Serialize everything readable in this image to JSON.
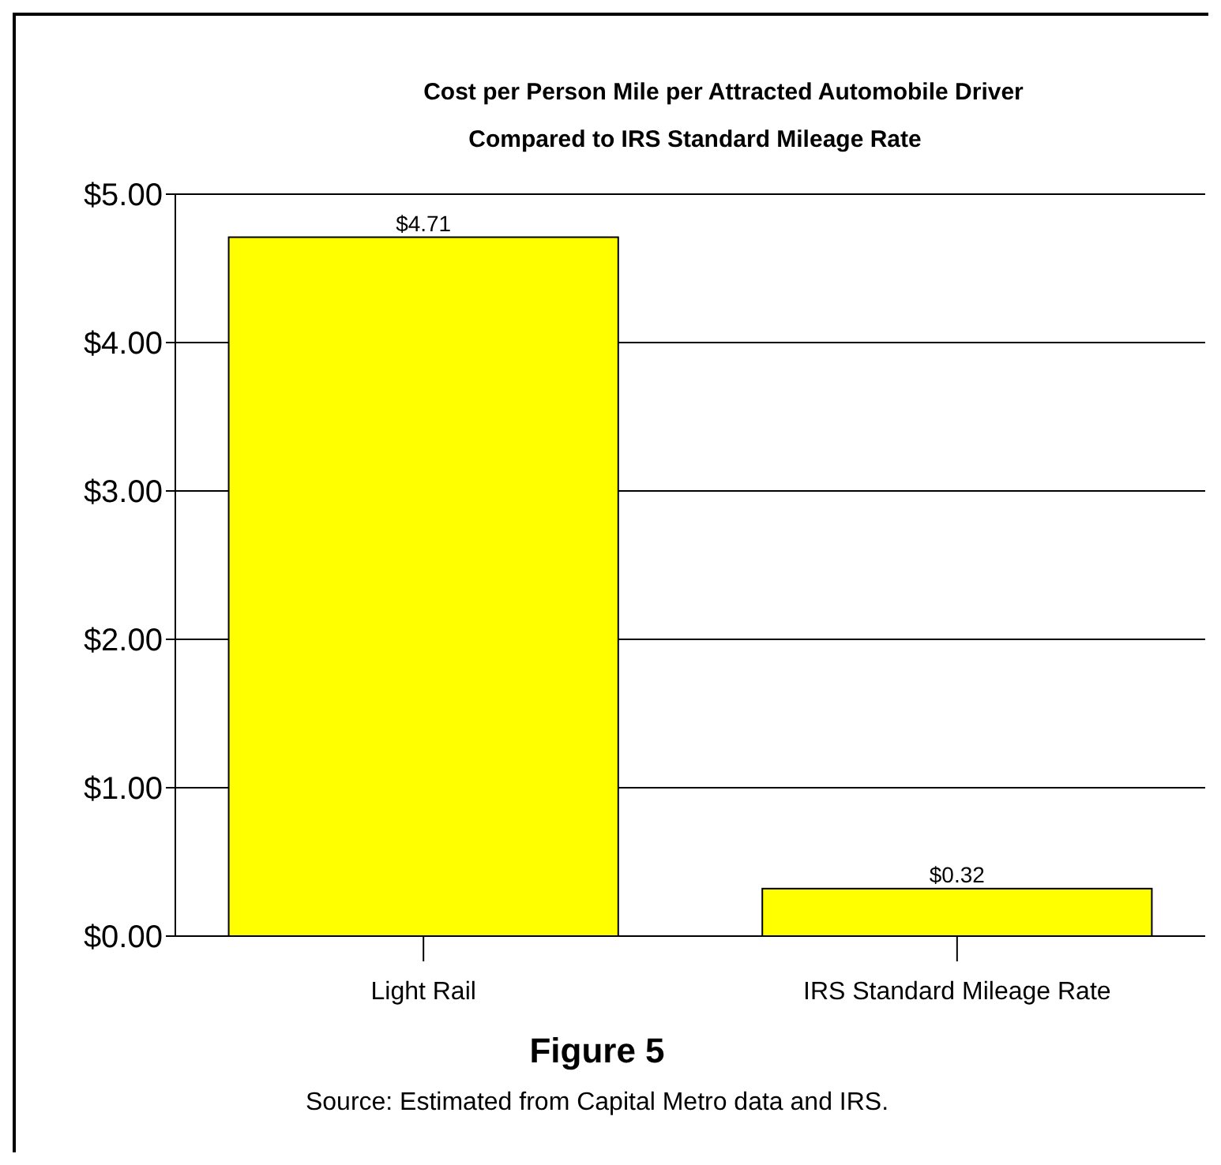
{
  "chart_data": {
    "type": "bar",
    "title": "Cost per Person Mile per Attracted Automobile Driver",
    "subtitle": "Compared to IRS Standard Mileage Rate",
    "categories": [
      "Light Rail",
      "IRS Standard Mileage Rate"
    ],
    "values": [
      4.71,
      0.32
    ],
    "color": "#ffff00",
    "value_labels": [
      "$4.71",
      "$0.32"
    ],
    "ylim": [
      0,
      5
    ],
    "yticks": [
      {
        "value": 0,
        "label": "$0.00"
      },
      {
        "value": 1,
        "label": "$1.00"
      },
      {
        "value": 2,
        "label": "$2.00"
      },
      {
        "value": 3,
        "label": "$3.00"
      },
      {
        "value": 4,
        "label": "$4.00"
      },
      {
        "value": 5,
        "label": "$5.00"
      }
    ],
    "grid": "y",
    "annotations": [
      "Figure 5",
      "Source: Estimated from Capital Metro data and IRS."
    ]
  }
}
